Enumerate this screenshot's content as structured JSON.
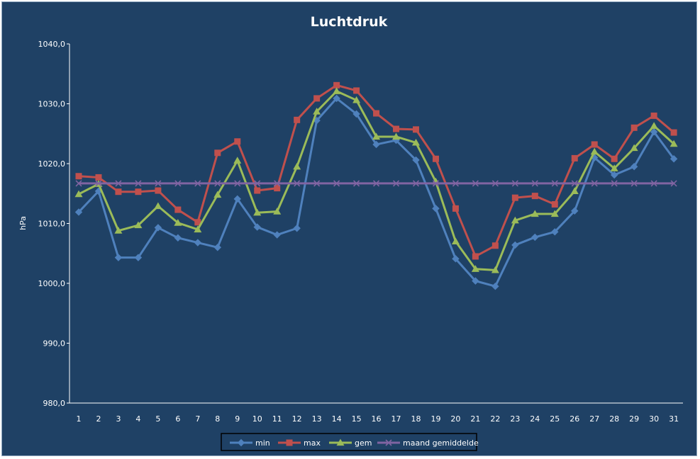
{
  "chart_data": {
    "type": "line",
    "title": "Luchtdruk",
    "xlabel": "",
    "ylabel": "hPa",
    "ylim": [
      980,
      1040
    ],
    "yticks": [
      "980,0",
      "990,0",
      "1000,0",
      "1010,0",
      "1020,0",
      "1030,0",
      "1040,0"
    ],
    "categories": [
      "1",
      "2",
      "3",
      "4",
      "5",
      "6",
      "7",
      "8",
      "9",
      "10",
      "11",
      "12",
      "13",
      "14",
      "15",
      "16",
      "17",
      "18",
      "19",
      "20",
      "21",
      "22",
      "23",
      "24",
      "25",
      "26",
      "27",
      "28",
      "29",
      "30",
      "31"
    ],
    "grid": false,
    "legend_position": "bottom",
    "background_color": "#1f4165",
    "series": [
      {
        "name": "min",
        "color": "#4f81bd",
        "marker": "diamond",
        "values": [
          1011.9,
          1015.4,
          1004.3,
          1004.3,
          1009.3,
          1007.6,
          1006.8,
          1006.0,
          1014.1,
          1009.4,
          1008.1,
          1009.2,
          1027.2,
          1030.9,
          1028.3,
          1023.2,
          1023.9,
          1020.6,
          1012.5,
          1004.1,
          1000.4,
          999.5,
          1006.4,
          1007.7,
          1008.6,
          1012.1,
          1021.0,
          1018.1,
          1019.5,
          1025.3,
          1020.8
        ]
      },
      {
        "name": "max",
        "color": "#c0504d",
        "marker": "square",
        "values": [
          1017.9,
          1017.7,
          1015.3,
          1015.3,
          1015.5,
          1012.3,
          1010.2,
          1021.8,
          1023.7,
          1015.5,
          1015.9,
          1027.3,
          1030.9,
          1033.1,
          1032.2,
          1028.4,
          1025.8,
          1025.7,
          1020.8,
          1012.5,
          1004.5,
          1006.3,
          1014.3,
          1014.6,
          1013.2,
          1020.9,
          1023.2,
          1020.8,
          1026.0,
          1028.0,
          1025.2
        ]
      },
      {
        "name": "gem",
        "color": "#9bbb59",
        "marker": "triangle",
        "values": [
          1014.9,
          1016.6,
          1008.8,
          1009.7,
          1012.9,
          1010.1,
          1009.0,
          1014.8,
          1020.5,
          1011.8,
          1012.0,
          1019.5,
          1028.7,
          1032.1,
          1030.6,
          1024.5,
          1024.5,
          1023.5,
          1017.0,
          1007.0,
          1002.4,
          1002.2,
          1010.5,
          1011.6,
          1011.6,
          1015.4,
          1022.0,
          1019.2,
          1022.6,
          1026.3,
          1023.3
        ]
      },
      {
        "name": "maand gemiddelde",
        "color": "#8064a2",
        "marker": "x",
        "values": [
          1016.7,
          1016.7,
          1016.7,
          1016.7,
          1016.7,
          1016.7,
          1016.7,
          1016.7,
          1016.7,
          1016.7,
          1016.7,
          1016.7,
          1016.7,
          1016.7,
          1016.7,
          1016.7,
          1016.7,
          1016.7,
          1016.7,
          1016.7,
          1016.7,
          1016.7,
          1016.7,
          1016.7,
          1016.7,
          1016.7,
          1016.7,
          1016.7,
          1016.7,
          1016.7,
          1016.7
        ]
      }
    ]
  }
}
